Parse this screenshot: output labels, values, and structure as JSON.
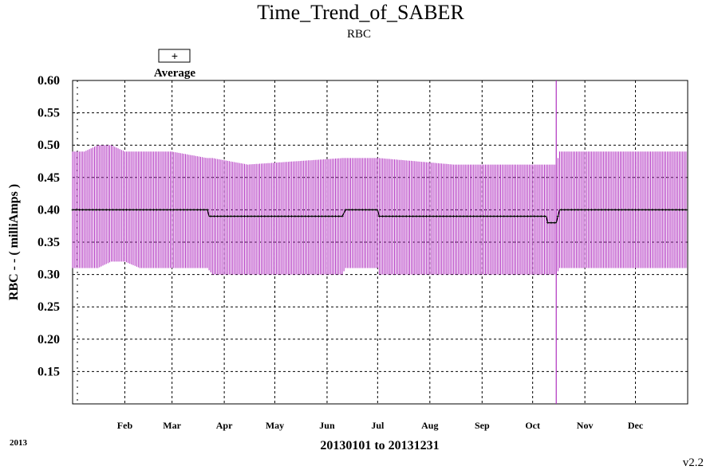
{
  "chart_data": {
    "type": "line",
    "title": "Time_Trend_of_SABER",
    "subtitle": "RBC",
    "ylabel": "RBC  - - ( milliAmps )",
    "xlabel": "20130101 to 20131231",
    "year_label": "2013",
    "version": "v2.2",
    "legend": {
      "marker": "+",
      "label": "Average",
      "placement": "top-left"
    },
    "ylim": [
      0.1,
      0.6
    ],
    "y_ticks": [
      "0.60",
      "0.55",
      "0.50",
      "0.45",
      "0.40",
      "0.35",
      "0.30",
      "0.25",
      "0.20",
      "0.15"
    ],
    "y_tick_values": [
      0.6,
      0.55,
      0.5,
      0.45,
      0.4,
      0.35,
      0.3,
      0.25,
      0.2,
      0.15
    ],
    "xlim": [
      "2013-01-01",
      "2013-12-31"
    ],
    "x_ticks": [
      "Feb",
      "Mar",
      "Apr",
      "May",
      "Jun",
      "Jul",
      "Aug",
      "Sep",
      "Oct",
      "Nov",
      "Dec"
    ],
    "x_tick_dates": [
      "2013-02-01",
      "2013-03-01",
      "2013-04-01",
      "2013-05-01",
      "2013-06-01",
      "2013-07-01",
      "2013-08-01",
      "2013-09-01",
      "2013-10-01",
      "2013-11-01",
      "2013-12-01"
    ],
    "grid": true,
    "colors": {
      "range": "#b030c0",
      "average": "#000000",
      "grid": "#000000"
    },
    "series": [
      {
        "name": "Average",
        "x": [
          "2013-01-01",
          "2013-03-22",
          "2013-03-23",
          "2013-06-10",
          "2013-06-12",
          "2013-07-01",
          "2013-07-02",
          "2013-10-09",
          "2013-10-10",
          "2013-10-15",
          "2013-10-17",
          "2013-12-31"
        ],
        "values": [
          0.4,
          0.4,
          0.39,
          0.39,
          0.4,
          0.4,
          0.39,
          0.39,
          0.38,
          0.38,
          0.4,
          0.4
        ]
      }
    ],
    "range_band": {
      "x": [
        "2013-01-01",
        "2013-01-08",
        "2013-01-16",
        "2013-01-24",
        "2013-02-01",
        "2013-02-10",
        "2013-03-01",
        "2013-03-22",
        "2013-03-25",
        "2013-04-15",
        "2013-06-10",
        "2013-06-12",
        "2013-07-01",
        "2013-07-02",
        "2013-08-15",
        "2013-10-09",
        "2013-10-10",
        "2013-10-15",
        "2013-10-17",
        "2013-12-31"
      ],
      "max": [
        0.49,
        0.49,
        0.5,
        0.5,
        0.49,
        0.49,
        0.49,
        0.48,
        0.48,
        0.47,
        0.48,
        0.48,
        0.48,
        0.48,
        0.47,
        0.47,
        0.47,
        0.47,
        0.49,
        0.49
      ],
      "min": [
        0.31,
        0.31,
        0.31,
        0.32,
        0.32,
        0.31,
        0.31,
        0.31,
        0.3,
        0.3,
        0.3,
        0.31,
        0.31,
        0.3,
        0.3,
        0.3,
        0.3,
        0.3,
        0.31,
        0.31
      ]
    },
    "spikes": [
      {
        "x": "2013-10-15",
        "min": 0.1,
        "max": 0.6
      }
    ]
  }
}
